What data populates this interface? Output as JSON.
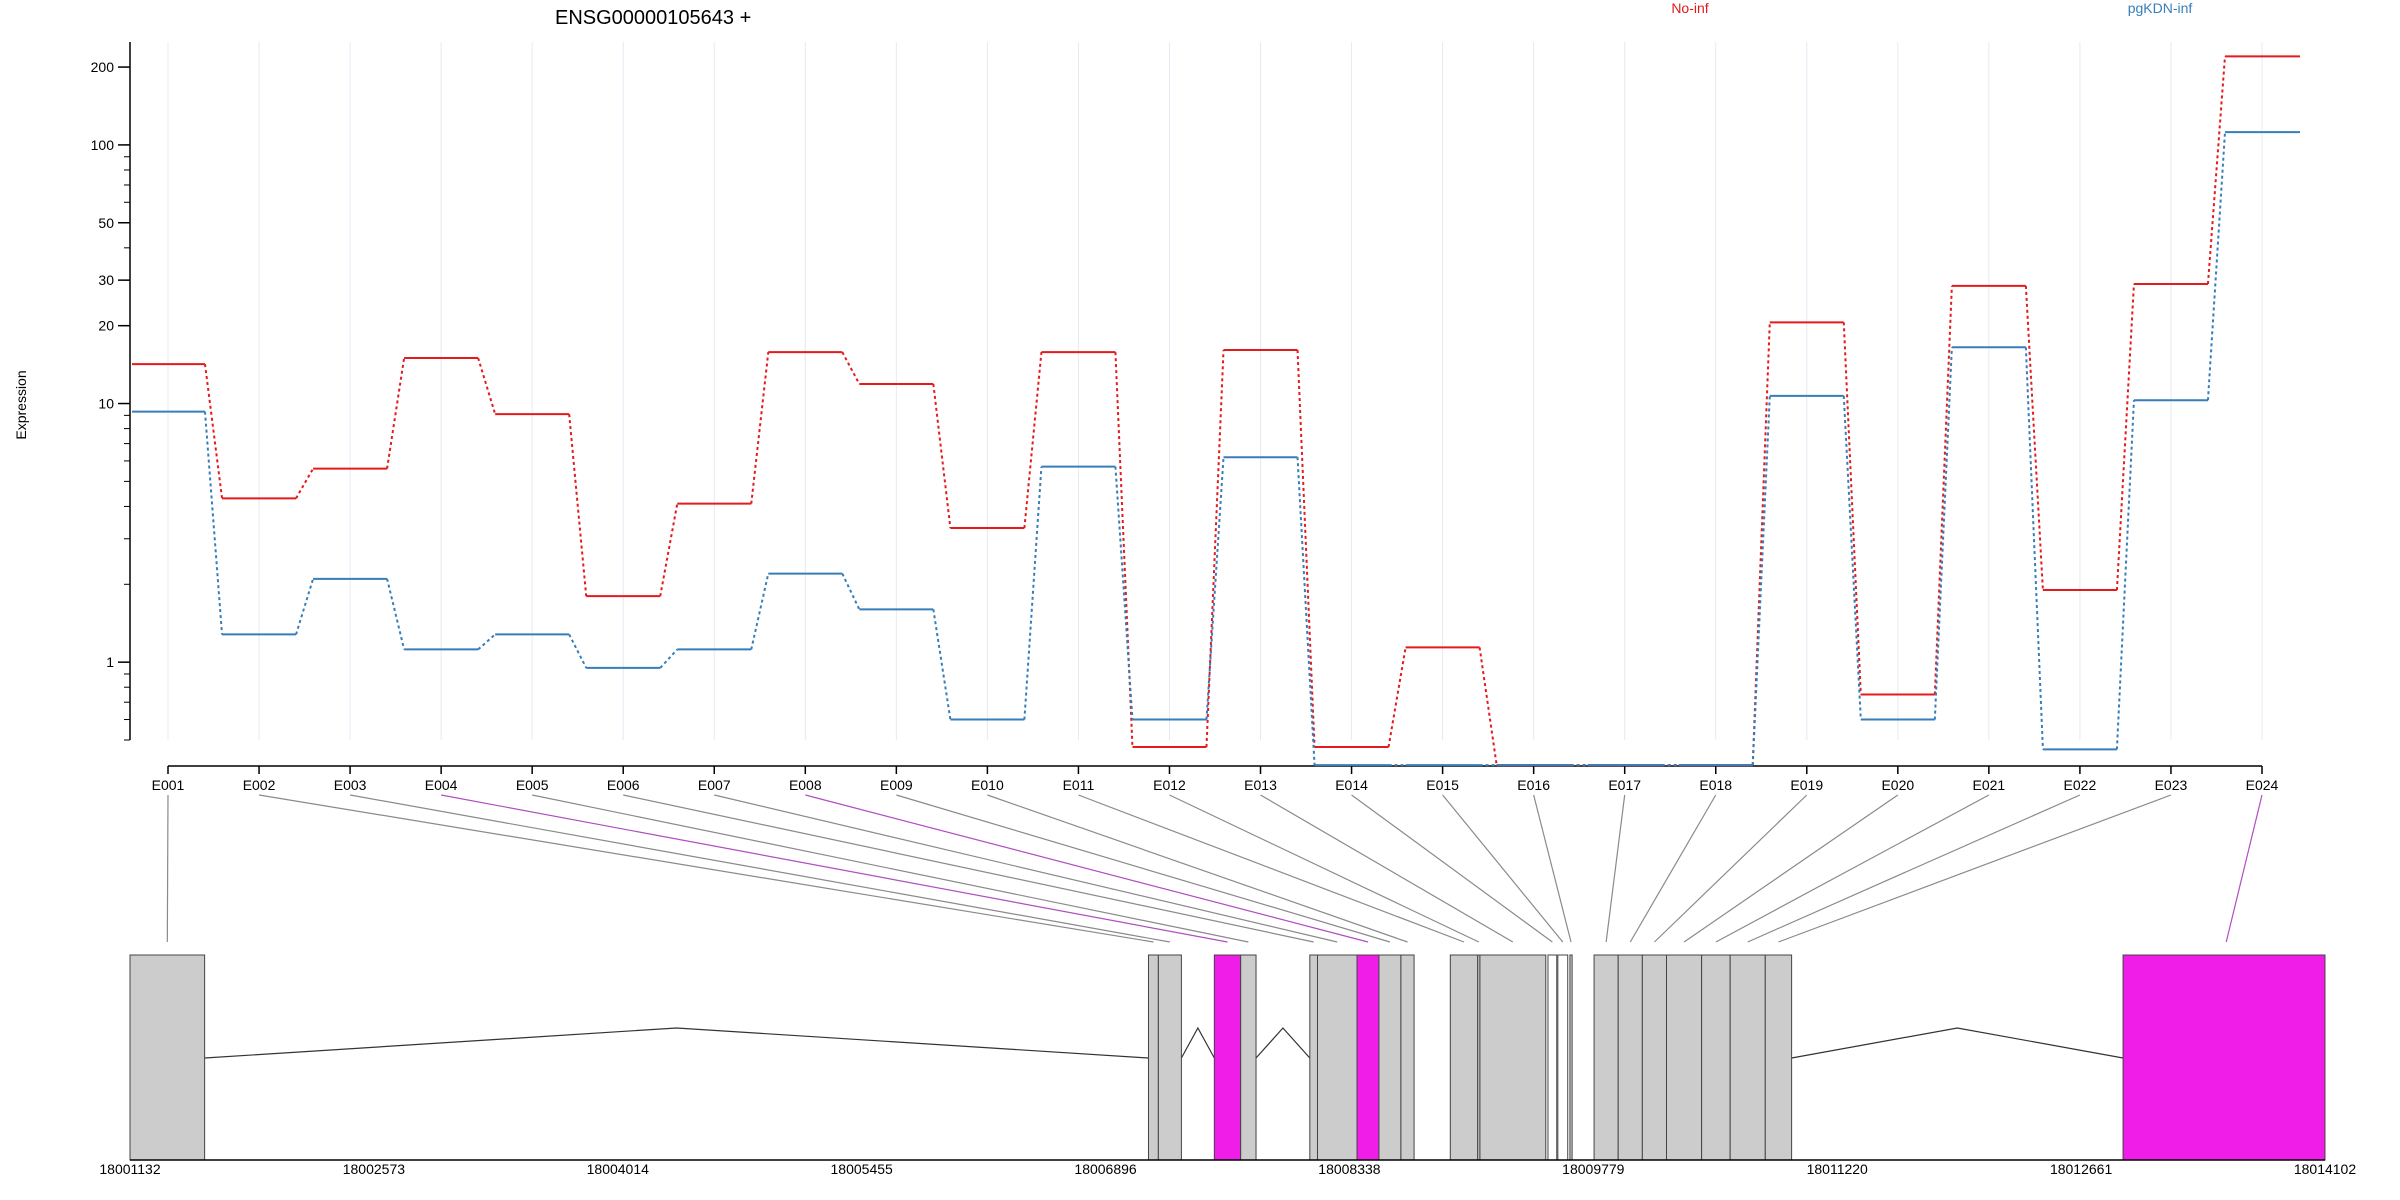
{
  "chart_data": {
    "type": "line",
    "title": "ENSG00000105643 +",
    "ylabel": "Expression",
    "xlabel": "",
    "y_scale": "log",
    "ylim": [
      0.5,
      250
    ],
    "grid": "vertical-light",
    "legend_placement": "top-right",
    "y_ticks": [
      1,
      10,
      20,
      30,
      50,
      100,
      200
    ],
    "y_tick_labels": [
      "1",
      "10",
      "20",
      "30",
      "50",
      "100",
      "200"
    ],
    "categories": [
      "E001",
      "E002",
      "E003",
      "E004",
      "E005",
      "E006",
      "E007",
      "E008",
      "E009",
      "E010",
      "E011",
      "E012",
      "E013",
      "E014",
      "E015",
      "E016",
      "E017",
      "E018",
      "E019",
      "E020",
      "E021",
      "E022",
      "E023",
      "E024"
    ],
    "series": [
      {
        "name": "No-inf",
        "color": "#e41a1c",
        "values": [
          14.2,
          4.3,
          5.6,
          15.0,
          9.1,
          1.8,
          4.1,
          15.8,
          11.9,
          3.3,
          15.8,
          0.47,
          16.1,
          0.47,
          1.14,
          0.4,
          0.4,
          0.4,
          20.6,
          0.75,
          28.5,
          1.9,
          29.0,
          220
        ]
      },
      {
        "name": "pgKDN-inf",
        "color": "#377eb8",
        "values": [
          9.3,
          1.28,
          2.1,
          1.12,
          1.28,
          0.95,
          1.12,
          2.2,
          1.6,
          0.6,
          5.7,
          0.6,
          6.2,
          0.4,
          0.4,
          0.4,
          0.4,
          0.4,
          10.7,
          0.6,
          16.5,
          0.46,
          10.3,
          112
        ]
      }
    ],
    "highlighted_exons": [
      "E004",
      "E008",
      "E024"
    ],
    "gene_model": {
      "coordinate_ticks": [
        "18001132",
        "18002573",
        "18004014",
        "18005455",
        "18006896",
        "18008338",
        "18009779",
        "18011220",
        "18012661",
        "18014102"
      ],
      "exon_fill_color": "#cccccc",
      "highlight_color": "#f01de8",
      "intron_color": "#333333"
    }
  }
}
